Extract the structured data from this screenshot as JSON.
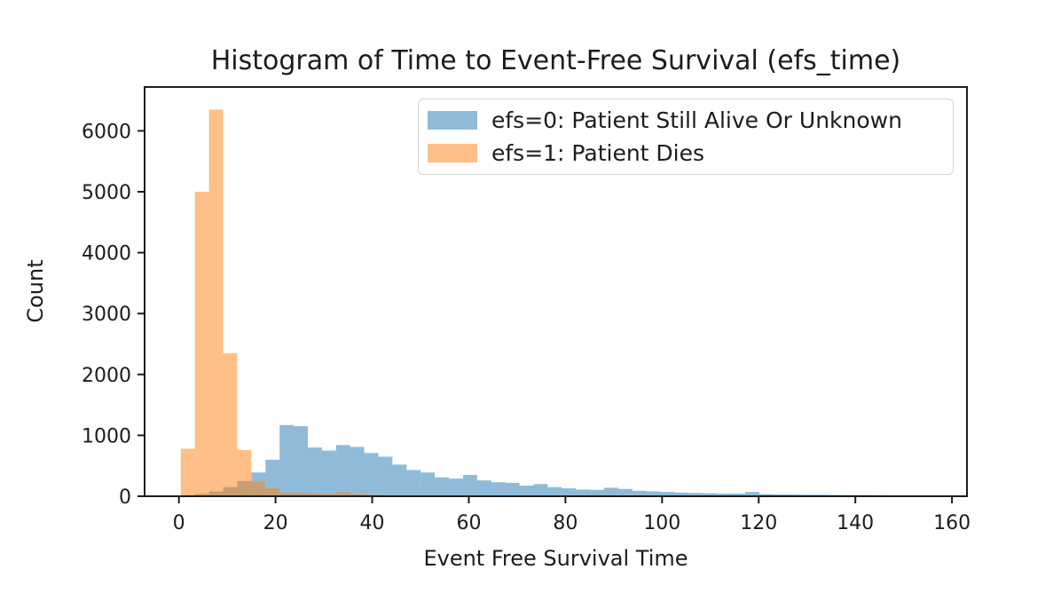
{
  "chart_data": {
    "type": "histogram",
    "title": "Histogram of Time to Event-Free Survival (efs_time)",
    "xlabel": "Event Free Survival Time",
    "ylabel": "Count",
    "x_ticks": [
      0,
      20,
      40,
      60,
      80,
      100,
      120,
      140,
      160
    ],
    "y_ticks": [
      0,
      1000,
      2000,
      3000,
      4000,
      5000,
      6000
    ],
    "xlim": [
      -7.1,
      163.1
    ],
    "ylim": [
      0,
      6720
    ],
    "grid": false,
    "legend_position": "upper right",
    "bin_start": 0.4,
    "bin_width": 2.92,
    "series": [
      {
        "name": "efs0",
        "label": "efs=0: Patient Still Alive Or Unknown",
        "color": "#1f77b4",
        "alpha": 0.5,
        "counts": [
          15,
          40,
          80,
          150,
          250,
          390,
          600,
          1170,
          1150,
          800,
          750,
          840,
          810,
          710,
          650,
          520,
          430,
          390,
          310,
          290,
          350,
          260,
          230,
          220,
          175,
          200,
          150,
          130,
          110,
          105,
          140,
          120,
          90,
          80,
          70,
          60,
          55,
          50,
          45,
          45,
          70,
          35,
          30,
          28,
          25,
          25,
          22,
          20,
          20,
          18,
          15
        ]
      },
      {
        "name": "efs1",
        "label": "efs=1: Patient Dies",
        "color": "#ff7f0e",
        "alpha": 0.5,
        "counts": [
          780,
          5000,
          6350,
          2350,
          760,
          240,
          130,
          60,
          55,
          45,
          40,
          65,
          35,
          25,
          15,
          10,
          8,
          6,
          4,
          3
        ]
      }
    ],
    "colors": {
      "text": "#1c1c1c",
      "spine": "#1c1c1c",
      "legend_border": "#d4d4d4",
      "background": "#ffffff"
    }
  }
}
